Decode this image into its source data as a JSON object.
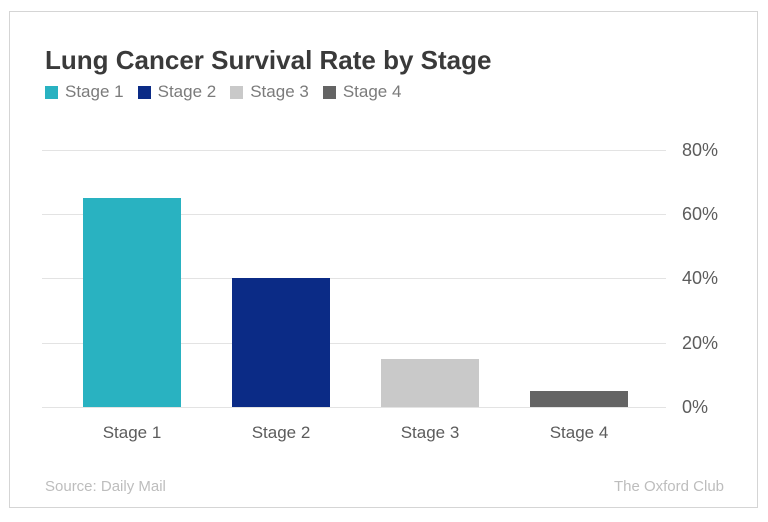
{
  "header": {
    "title": "Lung Cancer Survival Rate by Stage"
  },
  "footer": {
    "source": "Source: Daily Mail",
    "attribution": "The Oxford Club"
  },
  "colors": {
    "stage1": "#29b2c1",
    "stage2": "#0b2b86",
    "stage3": "#c9c9c9",
    "stage4": "#646464",
    "title_text": "#3a3a3a",
    "axis_text": "#5c5c5c",
    "legend_text": "#7b7b7b",
    "muted_text": "#bdbdbd",
    "gridline": "#e3e3e3",
    "card_border": "#d5d5d5"
  },
  "chart_data": {
    "type": "bar",
    "title": "Lung Cancer Survival Rate by Stage",
    "categories": [
      "Stage 1",
      "Stage 2",
      "Stage 3",
      "Stage 4"
    ],
    "values": [
      65,
      40,
      15,
      5
    ],
    "unit": "%",
    "bar_colors": [
      "#29b2c1",
      "#0b2b86",
      "#c9c9c9",
      "#646464"
    ],
    "legend": [
      {
        "label": "Stage 1",
        "color": "#29b2c1"
      },
      {
        "label": "Stage 2",
        "color": "#0b2b86"
      },
      {
        "label": "Stage 3",
        "color": "#c9c9c9"
      },
      {
        "label": "Stage 4",
        "color": "#646464"
      }
    ],
    "xlabel": "",
    "ylabel": "",
    "yticks": [
      {
        "value": 0,
        "label": "0%"
      },
      {
        "value": 20,
        "label": "20%"
      },
      {
        "value": 40,
        "label": "40%"
      },
      {
        "value": 60,
        "label": "60%"
      },
      {
        "value": 80,
        "label": "80%"
      }
    ],
    "ylim": [
      0,
      80
    ],
    "grid": true,
    "legend_position": "top-left",
    "ytick_side": "right"
  }
}
